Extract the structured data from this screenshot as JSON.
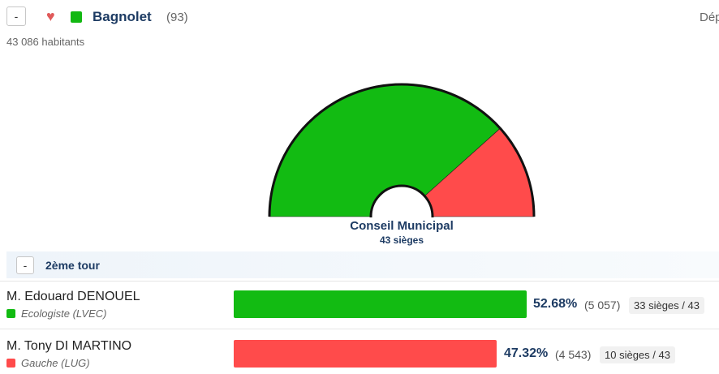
{
  "header": {
    "collapse_label": "-",
    "heart_icon": "heart-icon",
    "city_color": "#12b812",
    "city_name": "Bagnolet",
    "dept_code": "(93)",
    "right_text": "Dép",
    "population": "43 086 habitants"
  },
  "chart_data": {
    "type": "pie",
    "title": "Conseil Municipal",
    "subtitle": "43 sièges",
    "total": 43,
    "series": [
      {
        "name": "Ecologiste (LVEC)",
        "value": 33,
        "color": "#12bb12"
      },
      {
        "name": "Gauche (LUG)",
        "value": 10,
        "color": "#ff4b4b"
      }
    ]
  },
  "round": {
    "collapse_label": "-",
    "label": "2ème tour"
  },
  "candidates": [
    {
      "name": "M. Edouard DENOUEL",
      "party": "Ecologiste (LVEC)",
      "color": "#12bb12",
      "percent_value": 52.68,
      "percent": "52.68%",
      "votes": "(5 057)",
      "seats": "33 sièges / 43"
    },
    {
      "name": "M. Tony DI MARTINO",
      "party": "Gauche (LUG)",
      "color": "#ff4b4b",
      "percent_value": 47.32,
      "percent": "47.32%",
      "votes": "(4 543)",
      "seats": "10 sièges / 43"
    }
  ]
}
